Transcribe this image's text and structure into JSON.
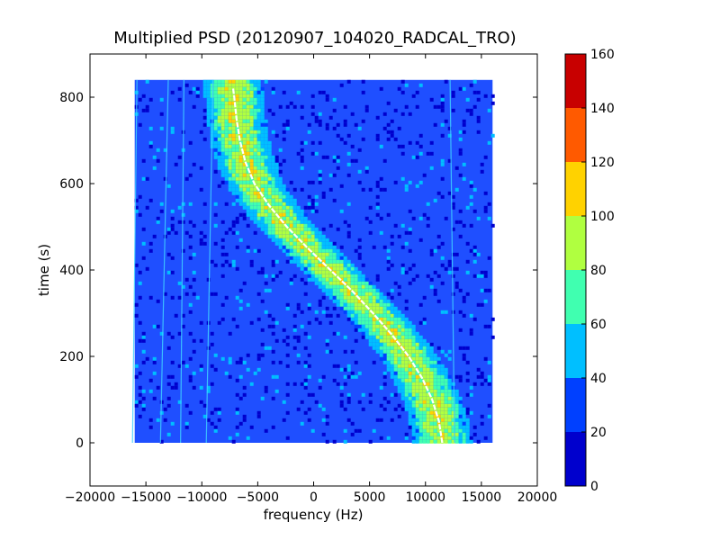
{
  "chart_data": {
    "type": "heatmap",
    "title": "Multiplied PSD (20120907_104020_RADCAL_TRO)",
    "xlabel": "frequency (Hz)",
    "ylabel": "time (s)",
    "xlim": [
      -20000,
      20000
    ],
    "ylim": [
      -100,
      900
    ],
    "xticks": [
      -20000,
      -15000,
      -10000,
      -5000,
      0,
      5000,
      10000,
      15000,
      20000
    ],
    "yticks": [
      0,
      200,
      400,
      600,
      800
    ],
    "data_extent": {
      "x": [
        -16000,
        16000
      ],
      "y": [
        0,
        840
      ]
    },
    "colorbar": {
      "ticks": [
        0,
        20,
        40,
        60,
        80,
        100,
        120,
        140,
        160
      ],
      "bins": [
        {
          "from": 0,
          "to": 20,
          "color": "#0000cd"
        },
        {
          "from": 20,
          "to": 40,
          "color": "#0040ff"
        },
        {
          "from": 40,
          "to": 60,
          "color": "#00bfff"
        },
        {
          "from": 60,
          "to": 80,
          "color": "#40ffb0"
        },
        {
          "from": 80,
          "to": 100,
          "color": "#b0ff40"
        },
        {
          "from": 100,
          "to": 120,
          "color": "#ffd200"
        },
        {
          "from": 120,
          "to": 140,
          "color": "#ff5a00"
        },
        {
          "from": 140,
          "to": 160,
          "color": "#c80000"
        }
      ]
    },
    "doppler_curve": [
      [
        11500,
        0
      ],
      [
        11200,
        50
      ],
      [
        10600,
        100
      ],
      [
        9700,
        150
      ],
      [
        8500,
        200
      ],
      [
        7000,
        250
      ],
      [
        5300,
        300
      ],
      [
        3500,
        350
      ],
      [
        1500,
        400
      ],
      [
        -500,
        450
      ],
      [
        -2400,
        500
      ],
      [
        -4000,
        550
      ],
      [
        -5300,
        600
      ],
      [
        -6100,
        650
      ],
      [
        -6600,
        700
      ],
      [
        -6900,
        750
      ],
      [
        -7100,
        800
      ],
      [
        -7200,
        820
      ]
    ],
    "band_width_hz": 4200,
    "vertical_lines": [
      {
        "x0": -16200,
        "x1": -15800
      },
      {
        "x0": -13700,
        "x1": -13000
      },
      {
        "x0": -11900,
        "x1": -11600
      },
      {
        "x0": -9600,
        "x1": -9000
      },
      {
        "x0": 12600,
        "x1": 12200
      }
    ]
  }
}
